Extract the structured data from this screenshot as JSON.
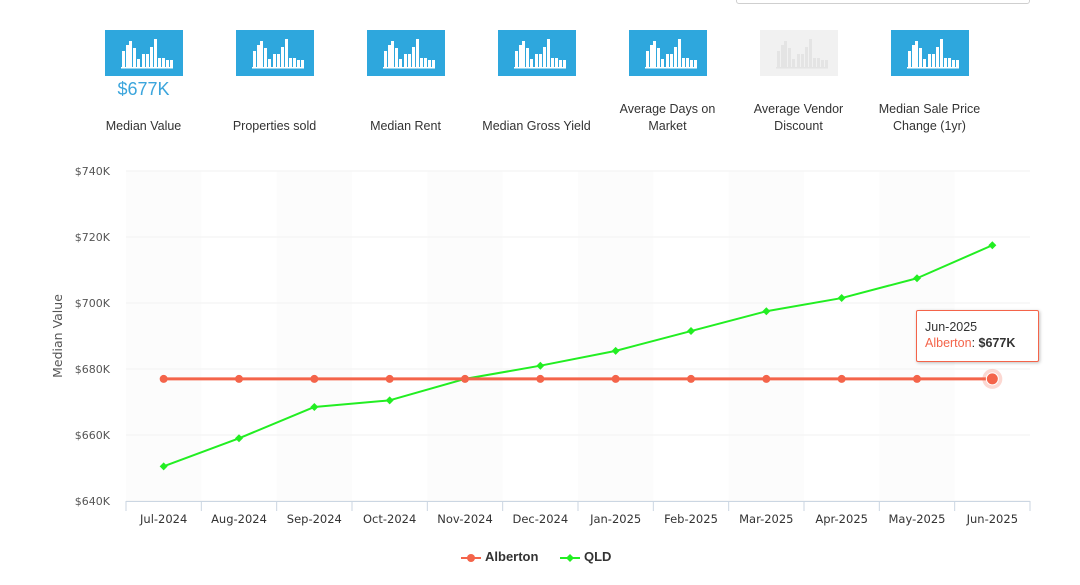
{
  "metrics": [
    {
      "label": "Median Value",
      "value": "$677K",
      "enabled": true
    },
    {
      "label": "Properties sold",
      "value": "",
      "enabled": true
    },
    {
      "label": "Median Rent",
      "value": "",
      "enabled": true
    },
    {
      "label": "Median Gross Yield",
      "value": "",
      "enabled": true
    },
    {
      "label": "Average Days on Market",
      "value": "",
      "enabled": true
    },
    {
      "label": "Average Vendor Discount",
      "value": "",
      "enabled": false
    },
    {
      "label": "Median Sale Price Change (1yr)",
      "value": "",
      "enabled": true
    }
  ],
  "colors": {
    "accent": "#2ea7dd",
    "alberton": "#f4644a",
    "qld": "#22ee22"
  },
  "tooltip": {
    "date": "Jun-2025",
    "series": "Alberton",
    "value": "$677K"
  },
  "chart_data": {
    "type": "line",
    "title": "",
    "xlabel": "",
    "ylabel": "Median Value",
    "categories": [
      "Jul-2024",
      "Aug-2024",
      "Sep-2024",
      "Oct-2024",
      "Nov-2024",
      "Dec-2024",
      "Jan-2025",
      "Feb-2025",
      "Mar-2025",
      "Apr-2025",
      "May-2025",
      "Jun-2025"
    ],
    "ylim": [
      640,
      740
    ],
    "yticks": [
      640,
      660,
      680,
      700,
      720,
      740
    ],
    "ytick_labels": [
      "$640K",
      "$660K",
      "$680K",
      "$700K",
      "$720K",
      "$740K"
    ],
    "series": [
      {
        "name": "Alberton",
        "color": "#f4644a",
        "values": [
          677,
          677,
          677,
          677,
          677,
          677,
          677,
          677,
          677,
          677,
          677,
          677
        ]
      },
      {
        "name": "QLD",
        "color": "#22ee22",
        "values": [
          650.5,
          659,
          668.5,
          670.5,
          677,
          681,
          685.5,
          691.5,
          697.5,
          701.5,
          707.5,
          717.5
        ]
      }
    ],
    "legend": "bottom-center",
    "grid": true
  }
}
